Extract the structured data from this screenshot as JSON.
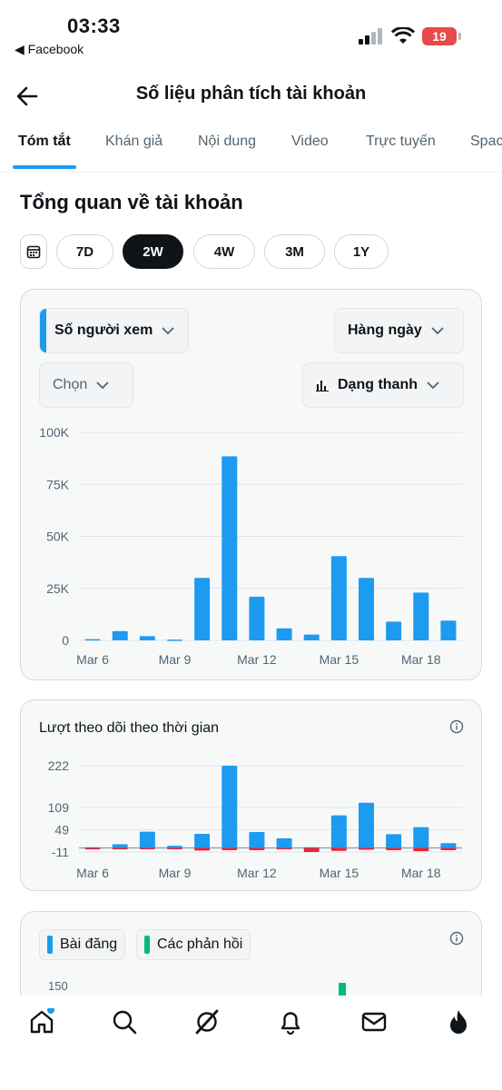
{
  "status_bar": {
    "time": "03:33",
    "back_app": "◀ Facebook",
    "battery": "19"
  },
  "header": {
    "title": "Số liệu phân tích tài khoản"
  },
  "tabs": [
    {
      "label": "Tóm tắt",
      "active": true
    },
    {
      "label": "Khán giả",
      "active": false
    },
    {
      "label": "Nội dung",
      "active": false
    },
    {
      "label": "Video",
      "active": false
    },
    {
      "label": "Trực tuyến",
      "active": false
    },
    {
      "label": "Spac",
      "active": false
    }
  ],
  "overview": {
    "title": "Tổng quan về tài khoản",
    "ranges": [
      {
        "label": "7D",
        "active": false
      },
      {
        "label": "2W",
        "active": true
      },
      {
        "label": "4W",
        "active": false
      },
      {
        "label": "3M",
        "active": false
      },
      {
        "label": "1Y",
        "active": false
      }
    ]
  },
  "views_card": {
    "metric_dropdown": "Số người xem",
    "interval_dropdown": "Hàng ngày",
    "compare_dropdown": "Chọn",
    "chart_type_dropdown": "Dạng thanh"
  },
  "followers_card": {
    "title": "Lượt theo dõi theo thời gian"
  },
  "posts_card": {
    "legend_posts": "Bài đăng",
    "legend_replies": "Các phản hồi",
    "y_top": "150"
  },
  "colors": {
    "accent": "#1d9bf0",
    "negative": "#f4212e",
    "replies": "#00ba7c"
  },
  "chart_data": [
    {
      "type": "bar",
      "categories": [
        "Mar 6",
        "Mar 7",
        "Mar 8",
        "Mar 9",
        "Mar 10",
        "Mar 11",
        "Mar 12",
        "Mar 13",
        "Mar 14",
        "Mar 15",
        "Mar 16",
        "Mar 17",
        "Mar 18",
        "Mar 19"
      ],
      "x_tick_labels": [
        "Mar 6",
        "Mar 9",
        "Mar 12",
        "Mar 15",
        "Mar 18"
      ],
      "y_tick_labels": [
        "100K",
        "75K",
        "50K",
        "25K",
        "0"
      ],
      "ylim": [
        0,
        100000
      ],
      "series": [
        {
          "values": [
            600,
            4500,
            2000,
            400,
            30000,
            88500,
            21000,
            5800,
            2800,
            40500,
            30000,
            9000,
            23000,
            9500
          ]
        }
      ]
    },
    {
      "type": "bar",
      "categories": [
        "Mar 6",
        "Mar 7",
        "Mar 8",
        "Mar 9",
        "Mar 10",
        "Mar 11",
        "Mar 12",
        "Mar 13",
        "Mar 14",
        "Mar 15",
        "Mar 16",
        "Mar 17",
        "Mar 18",
        "Mar 19"
      ],
      "x_tick_labels": [
        "Mar 6",
        "Mar 9",
        "Mar 12",
        "Mar 15",
        "Mar 18"
      ],
      "y_tick_labels": [
        "222",
        "109",
        "49",
        "-11"
      ],
      "ylim": [
        -11,
        222
      ],
      "series": [
        {
          "values": [
            2,
            10,
            44,
            6,
            38,
            222,
            43,
            26,
            2,
            88,
            122,
            37,
            56,
            13
          ]
        },
        {
          "values": [
            -4,
            -3,
            -2,
            -2,
            -7,
            -6,
            -6,
            -4,
            -11,
            -8,
            -5,
            -6,
            -9,
            -6
          ]
        }
      ]
    }
  ]
}
